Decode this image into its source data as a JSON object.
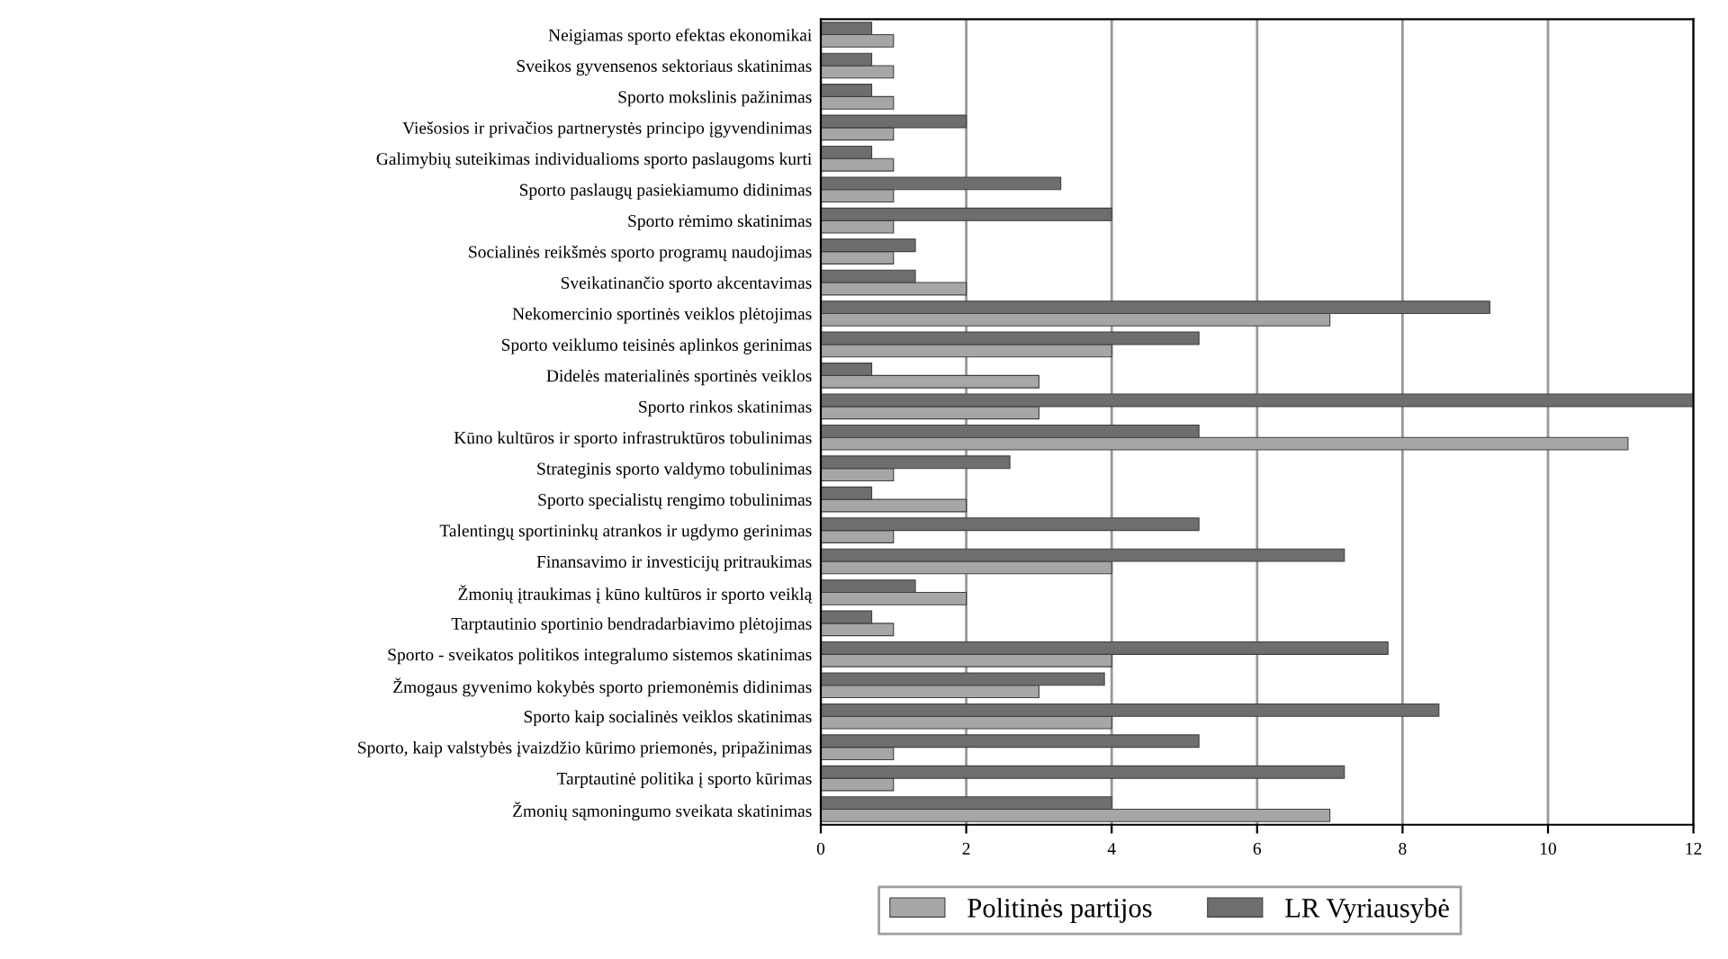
{
  "chart_data": {
    "type": "bar",
    "orientation": "horizontal",
    "categories": [
      "Neigiamas sporto efektas ekonomikai",
      "Sveikos gyvensenos sektoriaus skatinimas",
      "Sporto mokslinis pažinimas",
      "Viešosios ir privačios partnerystės principo įgyvendinimas",
      "Galimybių suteikimas individualioms sporto paslaugoms kurti",
      "Sporto paslaugų pasiekiamumo didinimas",
      "Sporto rėmimo skatinimas",
      "Socialinės reikšmės sporto programų naudojimas",
      "Sveikatinančio sporto akcentavimas",
      "Nekomercinio sportinės veiklos plėtojimas",
      "Sporto veiklumo teisinės aplinkos gerinimas",
      "Didelės materialinės sportinės veiklos",
      "Sporto rinkos skatinimas",
      "Kūno kultūros ir sporto infrastruktūros tobulinimas",
      "Strateginis sporto valdymo tobulinimas",
      "Sporto specialistų rengimo tobulinimas",
      "Talentingų sportininkų atrankos ir ugdymo gerinimas",
      "Finansavimo ir investicijų pritraukimas",
      "Žmonių įtraukimas į kūno kultūros ir sporto veiklą",
      "Tarptautinio sportinio bendradarbiavimo plėtojimas",
      "Sporto - sveikatos politikos integralumo sistemos skatinimas",
      "Žmogaus gyvenimo kokybės sporto priemonėmis didinimas",
      "Sporto kaip socialinės veiklos skatinimas",
      "Sporto, kaip valstybės įvaizdžio kūrimo priemonės, pripažinimas",
      "Tarptautinė politika į sporto kūrimas",
      "Žmonių sąmoningumo sveikata skatinimas"
    ],
    "series": [
      {
        "name": "Politinės partijos",
        "color": "#a6a6a6",
        "values": [
          1.0,
          1.0,
          1.0,
          1.0,
          1.0,
          1.0,
          1.0,
          1.0,
          2.0,
          7.0,
          4.0,
          3.0,
          3.0,
          11.1,
          1.0,
          2.0,
          1.0,
          4.0,
          2.0,
          1.0,
          4.0,
          3.0,
          4.0,
          1.0,
          1.0,
          7.0
        ]
      },
      {
        "name": "LR Vyriausybė",
        "color": "#6e6e6e",
        "values": [
          0.7,
          0.7,
          0.7,
          2.0,
          0.7,
          3.3,
          4.0,
          1.3,
          1.3,
          9.2,
          5.2,
          0.7,
          12.0,
          5.2,
          2.6,
          0.7,
          5.2,
          7.2,
          1.3,
          0.7,
          7.8,
          3.9,
          8.5,
          5.2,
          7.2,
          4.0
        ]
      }
    ],
    "xlim": [
      0,
      12
    ],
    "xticks": [
      0,
      2,
      4,
      6,
      8,
      10,
      12
    ],
    "grid": "x",
    "legend": "bottom"
  }
}
